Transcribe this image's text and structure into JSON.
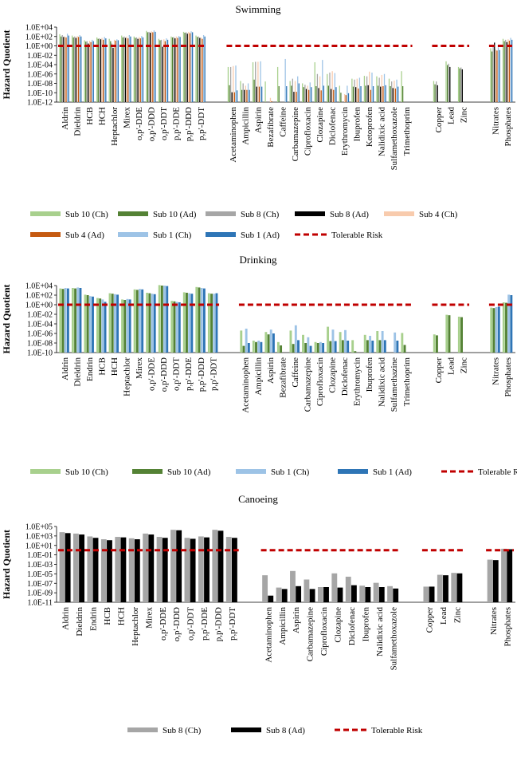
{
  "colors": {
    "sub10_ch": "#a8d08d",
    "sub10_ad": "#548235",
    "sub8_ch": "#a6a6a6",
    "sub8_ad": "#000000",
    "sub4_ch": "#f8cbad",
    "sub4_ad": "#c55a11",
    "sub1_ch": "#9dc3e6",
    "sub1_ad": "#2e75b6",
    "tolerable": "#c00000",
    "axis": "#000000"
  },
  "chart_data": [
    {
      "id": "swimming",
      "type": "bar",
      "title": "Swimming",
      "ylabel": "Hazard Quotient",
      "yscale": "log10",
      "ylim": [
        "1.0E-12",
        "1.0E+04"
      ],
      "yticks": [
        "1.0E+04",
        "1.0E+02",
        "1.0E+00",
        "1.0E-02",
        "1.0E-04",
        "1.0E-06",
        "1.0E-08",
        "1.0E-10",
        "1.0E-12"
      ],
      "tolerable_risk": 1,
      "groups": [
        [
          "Aldrin",
          "Dieldrin",
          "HCB",
          "HCH",
          "Heptachlor",
          "Mirex",
          "o,p'-DDE",
          "o,p'-DDD",
          "o,p'-DDT",
          "p,p'-DDE",
          "p,p'-DDD",
          "p,p'-DDT"
        ],
        [
          "Acetaminophen",
          "Ampicillin",
          "Aspirin",
          "Bezafibrate",
          "Caffeine",
          "Carbamazepine",
          "Ciprofloxacin",
          "Clozapine",
          "Diclofenac",
          "Erythromycin",
          "Ibuprofen",
          "Ketoprofen",
          "Nalidixic acid",
          "Sulfamethoxazole",
          "Trimethoprim"
        ],
        [
          "Copper",
          "Lead",
          "Zinc"
        ],
        [
          "Nitrates",
          "Phosphates"
        ]
      ],
      "legend": [
        {
          "key": "sub10_ch",
          "label": "Sub 10 (Ch)"
        },
        {
          "key": "sub10_ad",
          "label": "Sub 10 (Ad)"
        },
        {
          "key": "sub8_ch",
          "label": "Sub 8 (Ch)"
        },
        {
          "key": "sub8_ad",
          "label": "Sub 8 (Ad)"
        },
        {
          "key": "sub4_ch",
          "label": "Sub 4 (Ch)"
        },
        {
          "key": "sub4_ad",
          "label": "Sub 4 (Ad)"
        },
        {
          "key": "sub1_ch",
          "label": "Sub 1 (Ch)"
        },
        {
          "key": "sub1_ad",
          "label": "Sub 1 (Ad)"
        },
        {
          "key": "tolerable",
          "label": "Tolerable Risk",
          "dashed": true
        }
      ],
      "series_keys": [
        "sub10_ch",
        "sub10_ad",
        "sub8_ch",
        "sub8_ad",
        "sub4_ch",
        "sub4_ad",
        "sub1_ch",
        "sub1_ad"
      ],
      "values_log10": {
        "Aldrin": [
          2.5,
          2,
          2.3,
          1.9,
          2,
          1.8,
          2.6,
          2.2
        ],
        "Dieldrin": [
          2.2,
          1.8,
          2,
          1.7,
          2.1,
          1.9,
          2.3,
          2
        ],
        "HCB": [
          1.2,
          0.9,
          1,
          0.5,
          1.1,
          0.8,
          1.3,
          1
        ],
        "HCH": [
          1.8,
          1.5,
          1.6,
          1.4,
          1.7,
          1.3,
          1.9,
          1.6
        ],
        "Heptachlor": [
          1.5,
          1,
          0.5,
          -0.4,
          1.3,
          1.1,
          1.4,
          1.2
        ],
        "Mirex": [
          2.2,
          1.8,
          2,
          1.7,
          2,
          1.6,
          2.3,
          2
        ],
        "o,p'-DDE": [
          2,
          1.7,
          1.8,
          1.5,
          1.9,
          1.6,
          2.1,
          1.8
        ],
        "o,p'-DDD": [
          3.2,
          2.9,
          3,
          2.8,
          3.1,
          2.9,
          3.3,
          3
        ],
        "o,p'-DDT": [
          1.5,
          1.2,
          1.3,
          -0.2,
          1.4,
          1,
          1.6,
          1.3
        ],
        "p,p'-DDE": [
          2,
          1.8,
          1.9,
          1.6,
          2,
          1.7,
          2.1,
          1.9
        ],
        "p,p'-DDD": [
          3,
          2.8,
          2.9,
          2.6,
          3,
          2.7,
          3.1,
          2.9
        ],
        "p,p'-DDT": [
          2.2,
          1.9,
          2,
          1.7,
          1.8,
          1.5,
          2.3,
          2
        ],
        "Acetaminophen": [
          -4.5,
          -8.4,
          -4.5,
          -9.9,
          -4.3,
          -9.9,
          -4.2,
          -9.5
        ],
        "Ampicillin": [
          -7.5,
          -9.4,
          -8,
          -9.4,
          -8.5,
          -9.4,
          -8,
          -9.4
        ],
        "Aspirin": [
          -3.5,
          -7.2,
          -3.4,
          -8.7,
          -3.4,
          -8.7,
          -3.3,
          -8.7
        ],
        "Bezafibrate": [
          -7.6,
          null,
          null,
          null,
          -11.1,
          -11.8,
          null,
          null
        ],
        "Caffeine": [
          -4.5,
          -8.6,
          null,
          null,
          null,
          null,
          -2.8,
          -8.6
        ],
        "Carbamazepine": [
          -7.5,
          -8.5,
          -7,
          -9.8,
          -7.5,
          -9.8,
          -6.5,
          -8
        ],
        "Ciprofloxacin": [
          -8,
          -8.8,
          -8.3,
          -9.2,
          -8.5,
          -9.4,
          -7.8,
          -8.8
        ],
        "Clozapine": [
          -3.5,
          -8.6,
          -6,
          -9,
          -6.5,
          -9.5,
          -3,
          -8.5
        ],
        "Diclofenac": [
          -6,
          -8.5,
          -5.7,
          -9.2,
          -5.4,
          -9.4,
          -5.8,
          -8.8
        ],
        "Erythromycin": [
          -8.5,
          -10,
          null,
          null,
          -10.3,
          -10.5,
          -8.5,
          -10.1
        ],
        "Ibuprofen": [
          -7,
          -8.7,
          -7.2,
          -8.8,
          -7,
          -9.1,
          -6.8,
          -8.6
        ],
        "Ketoprofen": [
          -6.4,
          -8.5,
          -6.5,
          -8.4,
          -5.5,
          -9.4,
          -5.7,
          -8.6
        ],
        "Nalidixic acid": [
          -6.5,
          -8.5,
          -6.8,
          -8.7,
          -6.2,
          -8.6,
          -6,
          -8.4
        ],
        "Sulfamethoxazole": [
          -7,
          -8.6,
          -7.6,
          -9,
          -7.4,
          -9.1,
          -7.2,
          -8.7
        ],
        "Trimethoprim": [
          -5.4,
          -8.6,
          null,
          null,
          null,
          null,
          null,
          null
        ],
        "Copper": [
          -7.5,
          -8.2,
          -7.6,
          -8.4,
          null,
          null,
          null,
          null
        ],
        "Lead": [
          -3.3,
          -4.1,
          -3.8,
          -4.5,
          null,
          null,
          null,
          null
        ],
        "Zinc": [
          -4.5,
          -4.8,
          -4.6,
          -5,
          null,
          null,
          null,
          null
        ],
        "Nitrates": [
          -0.5,
          -1.2,
          0,
          0.7,
          -0.8,
          -1,
          -0.3,
          -0.9
        ],
        "Phosphates": [
          1.5,
          1,
          1.3,
          0.8,
          1.4,
          1.1,
          1.7,
          1.3
        ]
      }
    },
    {
      "id": "drinking",
      "type": "bar",
      "title": "Drinking",
      "ylabel": "Hazard Quotient",
      "yscale": "log10",
      "ylim": [
        "1.0E-10",
        "1.0E+04"
      ],
      "yticks": [
        "1.0E+04",
        "1.0E+02",
        "1.0E+00",
        "1.0E-02",
        "1.0E-04",
        "1.0E-06",
        "1.0E-08",
        "1.0E-10"
      ],
      "tolerable_risk": 1,
      "groups": [
        [
          "Aldrin",
          "Dieldrin",
          "Endrin",
          "HCB",
          "HCH",
          "Heptachlor",
          "Mirex",
          "o,p'-DDE",
          "o,p'-DDD",
          "o,p'-DDT",
          "p,p'-DDE",
          "p,p'-DDD",
          "p,p'-DDT"
        ],
        [
          "Acetaminophen",
          "Ampicillin",
          "Aspirin",
          "Bezafibrate",
          "Caffeine",
          "Carbamazepine",
          "Ciprofloxacin",
          "Clozapine",
          "Diclofenac",
          "Erythromycin",
          "Ibuprofen",
          "Nalidixic acid",
          "Sulfamethazine",
          "Trimethoprim"
        ],
        [
          "Copper",
          "Lead",
          "Zinc"
        ],
        [
          "Nitrates",
          "Phosphates"
        ]
      ],
      "legend": [
        {
          "key": "sub10_ch",
          "label": "Sub 10 (Ch)"
        },
        {
          "key": "sub10_ad",
          "label": "Sub 10 (Ad)"
        },
        {
          "key": "sub1_ch",
          "label": "Sub 1 (Ch)"
        },
        {
          "key": "sub1_ad",
          "label": "Sub 1 (Ad)"
        },
        {
          "key": "tolerable",
          "label": "Tolerable Risk",
          "dashed": true
        }
      ],
      "series_keys": [
        "sub10_ch",
        "sub10_ad",
        "sub1_ch",
        "sub1_ad"
      ],
      "values_log10": {
        "Aldrin": [
          3.4,
          3.3,
          3.5,
          3.4
        ],
        "Dieldrin": [
          3.5,
          3.4,
          3.6,
          3.5
        ],
        "Endrin": [
          2.1,
          2,
          1.8,
          1.7
        ],
        "HCB": [
          1.4,
          1.3,
          1.1,
          0.6
        ],
        "HCH": [
          2.4,
          2.3,
          2.2,
          2.1
        ],
        "Heptachlor": [
          1.1,
          1,
          1.2,
          1.1
        ],
        "Mirex": [
          3.2,
          3.1,
          3.3,
          3.2
        ],
        "o,p'-DDE": [
          2.5,
          2.4,
          2.3,
          2.2
        ],
        "o,p'-DDD": [
          4.1,
          4,
          4,
          3.9
        ],
        "o,p'-DDT": [
          0.8,
          0.7,
          0.6,
          0.5
        ],
        "p,p'-DDE": [
          2.6,
          2.5,
          2.4,
          2.3
        ],
        "p,p'-DDD": [
          3.7,
          3.6,
          3.5,
          3.4
        ],
        "p,p'-DDT": [
          2.4,
          2.3,
          2.3,
          2.4
        ],
        "Acetaminophen": [
          -5.4,
          -8.6,
          -5,
          -8
        ],
        "Ampicillin": [
          -7.5,
          -7.8,
          -7.5,
          -7.8
        ],
        "Aspirin": [
          -5.7,
          -6.2,
          -5.2,
          -6
        ],
        "Bezafibrate": [
          -7.8,
          -8.5,
          null,
          null
        ],
        "Caffeine": [
          -5.4,
          -8.2,
          -4.3,
          -7.4
        ],
        "Carbamazepine": [
          -6.3,
          -8,
          -6.8,
          -8.6
        ],
        "Ciprofloxacin": [
          -7.8,
          -8,
          -7.8,
          -8
        ],
        "Clozapine": [
          -4.6,
          -7.6,
          -5.2,
          -7.6
        ],
        "Diclofenac": [
          -5.7,
          -7.4,
          -5.3,
          -7.5
        ],
        "Erythromycin": [
          -7.4,
          -9.7,
          null,
          null
        ],
        "Ibuprofen": [
          -6.3,
          -7.4,
          -6.5,
          -7.5
        ],
        "Nalidixic acid": [
          -5.5,
          -7.4,
          -5.5,
          -7.4
        ],
        "Sulfamethazine": [
          null,
          null,
          -5.8,
          -7.5
        ],
        "Trimethoprim": [
          -5.9,
          -8.4,
          null,
          null
        ],
        "Copper": [
          -6.2,
          -6.4,
          null,
          null
        ],
        "Lead": [
          -2.1,
          -2.2,
          null,
          null
        ],
        "Zinc": [
          -2.5,
          -2.6,
          null,
          null
        ],
        "Nitrates": [
          -0.6,
          -0.7,
          -0.5,
          -0.4
        ],
        "Phosphates": [
          0.5,
          0.4,
          2.1,
          2
        ]
      }
    },
    {
      "id": "canoeing",
      "type": "bar",
      "title": "Canoeing",
      "ylabel": "Hazard Quotient",
      "yscale": "log10",
      "ylim": [
        "1.0E-11",
        "1.0E+05"
      ],
      "yticks": [
        "1.0E+05",
        "1.0E+03",
        "1.0E+01",
        "1.0E-01",
        "1.0E-03",
        "1.0E-05",
        "1.0E-07",
        "1.0E-09",
        "1.0E-11"
      ],
      "tolerable_risk": 1,
      "groups": [
        [
          "Aldrin",
          "Dieldrin",
          "Endrin",
          "HCB",
          "HCH",
          "Heptachlor",
          "Mirex",
          "o,p'-DDE",
          "o,p'-DDD",
          "o,p'-DDT",
          "p,p'-DDE",
          "p,p'-DDD",
          "p,p'-DDT"
        ],
        [
          "Acetaminophen",
          "Ampicillin",
          "Aspirin",
          "Carbamazepine",
          "Ciprofloxacin",
          "Clozapine",
          "Diclofenac",
          "Ibuprofen",
          "Nalidixic acid",
          "Sulfamethoxazole"
        ],
        [
          "Copper",
          "Lead",
          "Zinc"
        ],
        [
          "Nitrates",
          "Phosphates"
        ]
      ],
      "legend": [
        {
          "key": "sub8_ch",
          "label": "Sub 8 (Ch)"
        },
        {
          "key": "sub8_ad",
          "label": "Sub 8 (Ad)"
        },
        {
          "key": "tolerable",
          "label": "Tolerable Risk",
          "dashed": true
        }
      ],
      "series_keys": [
        "sub8_ch",
        "sub8_ad"
      ],
      "values_log10": {
        "Aldrin": [
          3.8,
          3.6
        ],
        "Dieldrin": [
          3.5,
          3.3
        ],
        "Endrin": [
          2.9,
          2.6
        ],
        "HCB": [
          2.3,
          2.1
        ],
        "HCH": [
          2.8,
          2.7
        ],
        "Heptachlor": [
          2.5,
          2.3
        ],
        "Mirex": [
          3.5,
          3.3
        ],
        "o,p'-DDE": [
          2.8,
          2.6
        ],
        "o,p'-DDD": [
          4.3,
          4.2
        ],
        "o,p'-DDT": [
          2.6,
          2.4
        ],
        "p,p'-DDE": [
          2.9,
          2.7
        ],
        "p,p'-DDD": [
          4.3,
          4.1
        ],
        "p,p'-DDT": [
          2.8,
          2.6
        ],
        "Acetaminophen": [
          -5.3,
          -9.6
        ],
        "Ampicillin": [
          -7.9,
          -8.2
        ],
        "Aspirin": [
          -4.4,
          -7.6
        ],
        "Carbamazepine": [
          -6.2,
          -8.2
        ],
        "Ciprofloxacin": [
          -7.8,
          -7.8
        ],
        "Clozapine": [
          -4.9,
          -7.9
        ],
        "Diclofenac": [
          -5.6,
          -7.4
        ],
        "Ibuprofen": [
          -7.5,
          -7.8
        ],
        "Nalidixic acid": [
          -6.9,
          -7.8
        ],
        "Sulfamethoxazole": [
          -7.6,
          -8.1
        ],
        "Copper": [
          -7.7,
          -7.7
        ],
        "Lead": [
          -5.2,
          -5.3
        ],
        "Zinc": [
          -4.8,
          -4.9
        ],
        "Nitrates": [
          -2,
          -2.1
        ],
        "Phosphates": [
          0.3,
          0.2
        ]
      }
    }
  ]
}
